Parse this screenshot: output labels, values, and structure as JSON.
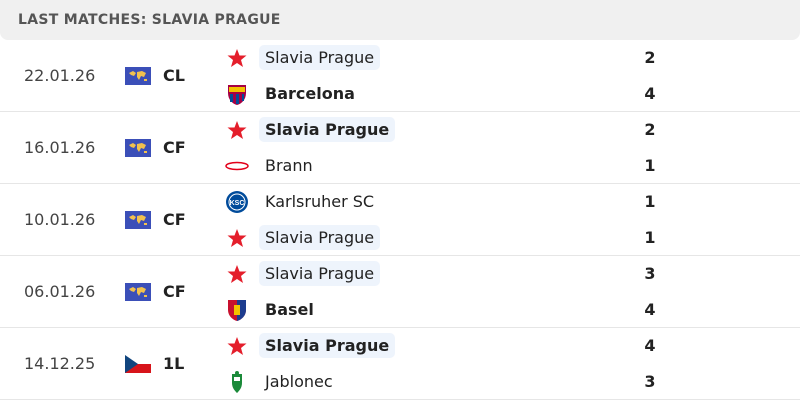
{
  "header": {
    "title": "LAST MATCHES: SLAVIA PRAGUE"
  },
  "colors": {
    "highlight": "#eef4fc",
    "slavia_red": "#e41e2b"
  },
  "matches": [
    {
      "date": "22.01.26",
      "competition": "CL",
      "comp_icon": "world-flag-icon",
      "home": {
        "name": "Slavia Prague",
        "logo": "slavia-star-icon",
        "score": "2",
        "bold": false,
        "highlight": true
      },
      "away": {
        "name": "Barcelona",
        "logo": "barcelona-crest-icon",
        "score": "4",
        "bold": true,
        "highlight": false
      }
    },
    {
      "date": "16.01.26",
      "competition": "CF",
      "comp_icon": "world-flag-icon",
      "home": {
        "name": "Slavia Prague",
        "logo": "slavia-star-icon",
        "score": "2",
        "bold": true,
        "highlight": true
      },
      "away": {
        "name": "Brann",
        "logo": "brann-logo-icon",
        "score": "1",
        "bold": false,
        "highlight": false
      }
    },
    {
      "date": "10.01.26",
      "competition": "CF",
      "comp_icon": "world-flag-icon",
      "home": {
        "name": "Karlsruher SC",
        "logo": "ksc-logo-icon",
        "score": "1",
        "bold": false,
        "highlight": false
      },
      "away": {
        "name": "Slavia Prague",
        "logo": "slavia-star-icon",
        "score": "1",
        "bold": false,
        "highlight": true
      }
    },
    {
      "date": "06.01.26",
      "competition": "CF",
      "comp_icon": "world-flag-icon",
      "home": {
        "name": "Slavia Prague",
        "logo": "slavia-star-icon",
        "score": "3",
        "bold": false,
        "highlight": true
      },
      "away": {
        "name": "Basel",
        "logo": "basel-crest-icon",
        "score": "4",
        "bold": true,
        "highlight": false
      }
    },
    {
      "date": "14.12.25",
      "competition": "1L",
      "comp_icon": "czech-flag-icon",
      "home": {
        "name": "Slavia Prague",
        "logo": "slavia-star-icon",
        "score": "4",
        "bold": true,
        "highlight": true
      },
      "away": {
        "name": "Jablonec",
        "logo": "jablonec-crest-icon",
        "score": "3",
        "bold": false,
        "highlight": false
      }
    }
  ]
}
